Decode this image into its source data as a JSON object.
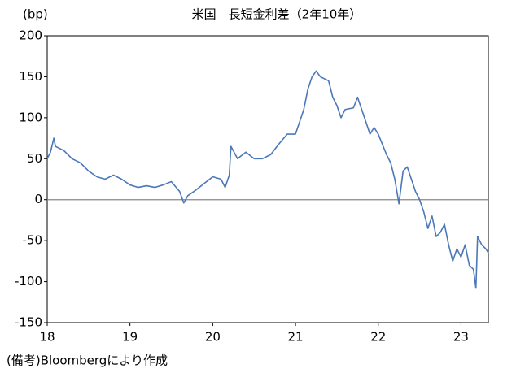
{
  "chart_data": {
    "type": "line",
    "title": "米国　長短金利差（2年10年）",
    "y_unit": "(bp)",
    "note": "(備考)Bloombergにより作成",
    "x": [
      18.0,
      18.04,
      18.08,
      18.1,
      18.2,
      18.3,
      18.4,
      18.5,
      18.6,
      18.7,
      18.8,
      18.9,
      19.0,
      19.1,
      19.2,
      19.3,
      19.4,
      19.5,
      19.6,
      19.65,
      19.7,
      19.8,
      19.9,
      20.0,
      20.1,
      20.15,
      20.2,
      20.22,
      20.3,
      20.4,
      20.5,
      20.6,
      20.7,
      20.8,
      20.9,
      21.0,
      21.1,
      21.15,
      21.2,
      21.25,
      21.3,
      21.4,
      21.45,
      21.5,
      21.55,
      21.6,
      21.7,
      21.75,
      21.8,
      21.9,
      21.95,
      22.0,
      22.1,
      22.15,
      22.2,
      22.25,
      22.3,
      22.35,
      22.4,
      22.45,
      22.5,
      22.55,
      22.6,
      22.65,
      22.7,
      22.75,
      22.8,
      22.85,
      22.9,
      22.95,
      23.0,
      23.05,
      23.1,
      23.15,
      23.18,
      23.2,
      23.25,
      23.3,
      23.33
    ],
    "series": [
      {
        "name": "長短金利差",
        "color": "#4a78b8",
        "values": [
          50,
          58,
          75,
          65,
          60,
          50,
          45,
          35,
          28,
          25,
          30,
          25,
          18,
          15,
          17,
          15,
          18,
          22,
          10,
          -4,
          5,
          12,
          20,
          28,
          25,
          15,
          30,
          65,
          50,
          58,
          50,
          50,
          55,
          68,
          80,
          80,
          110,
          135,
          150,
          157,
          150,
          145,
          125,
          115,
          100,
          110,
          112,
          125,
          110,
          80,
          88,
          80,
          55,
          45,
          25,
          -5,
          35,
          40,
          25,
          10,
          0,
          -15,
          -35,
          -20,
          -45,
          -40,
          -30,
          -55,
          -75,
          -60,
          -70,
          -55,
          -80,
          -85,
          -108,
          -45,
          -55,
          -60,
          -65
        ]
      }
    ],
    "xlim": [
      18,
      23.33
    ],
    "xticks": [
      18,
      19,
      20,
      21,
      22,
      23
    ],
    "ylim": [
      -150,
      200
    ],
    "yticks": [
      -150,
      -100,
      -50,
      0,
      50,
      100,
      150,
      200
    ],
    "reference_line": 0
  }
}
